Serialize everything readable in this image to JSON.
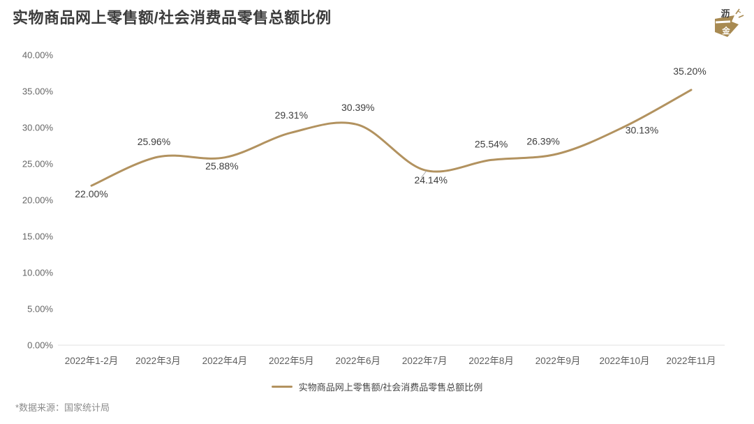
{
  "header": {
    "title": "实物商品网上零售额/社会消费品零售总额比例"
  },
  "logo": {
    "name": "沥金",
    "top_char": "沥",
    "bottom_char": "金"
  },
  "chart_data": {
    "type": "line",
    "title": "实物商品网上零售额/社会消费品零售总额比例",
    "categories": [
      "2022年1-2月",
      "2022年3月",
      "2022年4月",
      "2022年5月",
      "2022年6月",
      "2022年7月",
      "2022年8月",
      "2022年9月",
      "2022年10月",
      "2022年11月"
    ],
    "series": [
      {
        "name": "实物商品网上零售额/社会消费品零售总额比例",
        "values": [
          22.0,
          25.96,
          25.88,
          29.31,
          30.39,
          24.14,
          25.54,
          26.39,
          30.13,
          35.2
        ],
        "point_labels": [
          "22.00%",
          "25.96%",
          "25.88%",
          "29.31%",
          "30.39%",
          "24.14%",
          "25.54%",
          "26.39%",
          "30.13%",
          "35.20%"
        ],
        "color": "#b2925f"
      }
    ],
    "xlabel": "",
    "ylabel": "",
    "ylim": [
      0,
      40
    ],
    "y_tick_step": 5,
    "y_tick_labels": [
      "0.00%",
      "5.00%",
      "10.00%",
      "15.00%",
      "20.00%",
      "25.00%",
      "30.00%",
      "35.00%",
      "40.00%"
    ],
    "grid": false,
    "smooth": true,
    "legend_position": "bottom"
  },
  "legend": {
    "items": [
      {
        "label": "实物商品网上零售额/社会消费品零售总额比例",
        "color": "#b2925f"
      }
    ]
  },
  "footer": {
    "source_note": "*数据来源：国家统计局"
  },
  "colors": {
    "line": "#b2925f",
    "logo_gold": "#a88a52",
    "title_text": "#3c3c3c",
    "axis_text": "#5e5e5e",
    "tick_text": "#666666",
    "axis_line": "#e2e2e2",
    "data_label": "#3d3d3d",
    "footer_text": "#8c8c8c",
    "leader_line": "#aaaaaa"
  }
}
